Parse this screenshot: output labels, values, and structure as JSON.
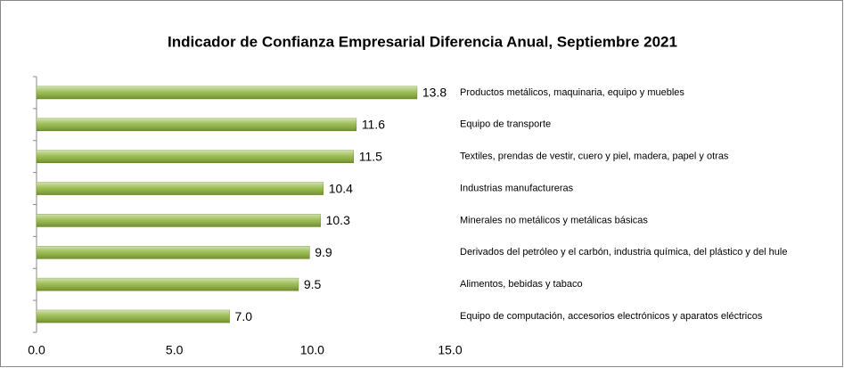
{
  "chart_data": {
    "type": "bar",
    "orientation": "horizontal",
    "title": "Indicador de Confianza Empresarial Diferencia Anual, Septiembre 2021",
    "categories": [
      "Productos metálicos, maquinaria, equipo y muebles",
      "Equipo de transporte",
      "Textiles, prendas de vestir, cuero y piel, madera, papel y otras",
      "Industrias manufactureras",
      "Minerales no metálicos y metálicas básicas",
      "Derivados del petróleo y el carbón, industria química, del plástico y del hule",
      "Alimentos, bebidas y tabaco",
      "Equipo de computación, accesorios electrónicos y aparatos eléctricos"
    ],
    "values": [
      13.8,
      11.6,
      11.5,
      10.4,
      10.3,
      9.9,
      9.5,
      7.0
    ],
    "value_labels": [
      "13.8",
      "11.6",
      "11.5",
      "10.4",
      "10.3",
      "9.9",
      "9.5",
      "7.0"
    ],
    "color": "#8db33a",
    "xlim": [
      0,
      15
    ],
    "xticks": [
      {
        "value": 0,
        "label": "0.0"
      },
      {
        "value": 5,
        "label": "5.0"
      },
      {
        "value": 10,
        "label": "10.0"
      },
      {
        "value": 15,
        "label": "15.0"
      }
    ],
    "grid": false
  }
}
